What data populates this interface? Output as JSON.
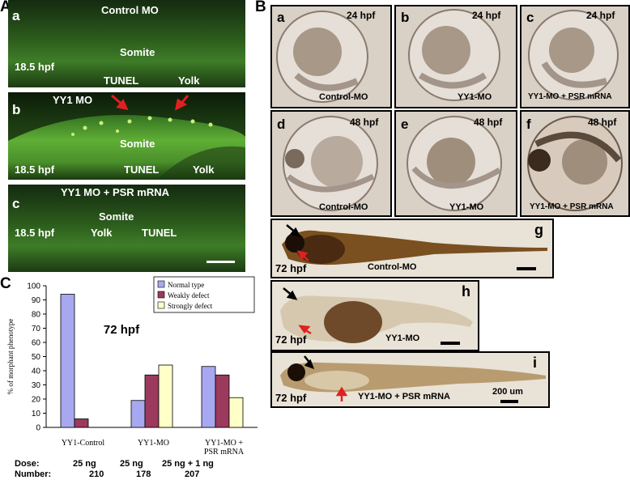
{
  "panelA": {
    "letter": "A",
    "sub": [
      {
        "letter": "a",
        "title": "Control MO",
        "stage": "18.5 hpf",
        "labels": [
          "Somite",
          "TUNEL",
          "Yolk"
        ]
      },
      {
        "letter": "b",
        "title": "YY1 MO",
        "stage": "18.5 hpf",
        "labels": [
          "Somite",
          "TUNEL",
          "Yolk"
        ]
      },
      {
        "letter": "c",
        "title": "YY1 MO + PSR mRNA",
        "stage": "18.5 hpf",
        "labels": [
          "Somite",
          "Yolk",
          "TUNEL"
        ]
      }
    ]
  },
  "panelB": {
    "letter": "B",
    "embryos": [
      {
        "letter": "a",
        "stage": "24 hpf",
        "label": "Control-MO"
      },
      {
        "letter": "b",
        "stage": "24 hpf",
        "label": "YY1-MO"
      },
      {
        "letter": "c",
        "stage": "24 hpf",
        "label": "YY1-MO + PSR mRNA"
      },
      {
        "letter": "d",
        "stage": "48 hpf",
        "label": "Control-MO"
      },
      {
        "letter": "e",
        "stage": "48 hpf",
        "label": "YY1-MO"
      },
      {
        "letter": "f",
        "stage": "48 hpf",
        "label": "YY1-MO + PSR mRNA"
      }
    ],
    "larvae": [
      {
        "letter": "g",
        "stage": "72 hpf",
        "label": "Control-MO"
      },
      {
        "letter": "h",
        "stage": "72 hpf",
        "label": "YY1-MO"
      },
      {
        "letter": "i",
        "stage": "72 hpf",
        "label": "YY1-MO + PSR mRNA",
        "scale": "200 um"
      }
    ]
  },
  "panelC": {
    "letter": "C",
    "dose_label": "Dose:",
    "number_label": "Number:",
    "doses": [
      "25 ng",
      "25 ng",
      "25 ng + 1 ng"
    ],
    "numbers": [
      "210",
      "178",
      "207"
    ]
  },
  "chart_data": {
    "type": "bar",
    "title": "72 hpf",
    "ylabel": "% of morphant phenotype",
    "xlabel": "",
    "ylim": [
      0,
      100
    ],
    "yticks": [
      0,
      10,
      20,
      30,
      40,
      50,
      60,
      70,
      80,
      90,
      100
    ],
    "categories": [
      "YY1-Control",
      "YY1-MO",
      "YY1-MO + PSR mRNA"
    ],
    "category_lines": [
      [
        "YY1-Control"
      ],
      [
        "YY1-MO"
      ],
      [
        "YY1-MO +",
        "PSR mRNA"
      ]
    ],
    "series": [
      {
        "name": "Normal type",
        "color": "#a8a8f0",
        "values": [
          94,
          19,
          43
        ]
      },
      {
        "name": "Weakly defect",
        "color": "#9b3a5c",
        "values": [
          6,
          37,
          37
        ]
      },
      {
        "name": "Strongly defect",
        "color": "#ffffc8",
        "values": [
          0,
          44,
          21
        ]
      }
    ],
    "legend": "top-right"
  }
}
